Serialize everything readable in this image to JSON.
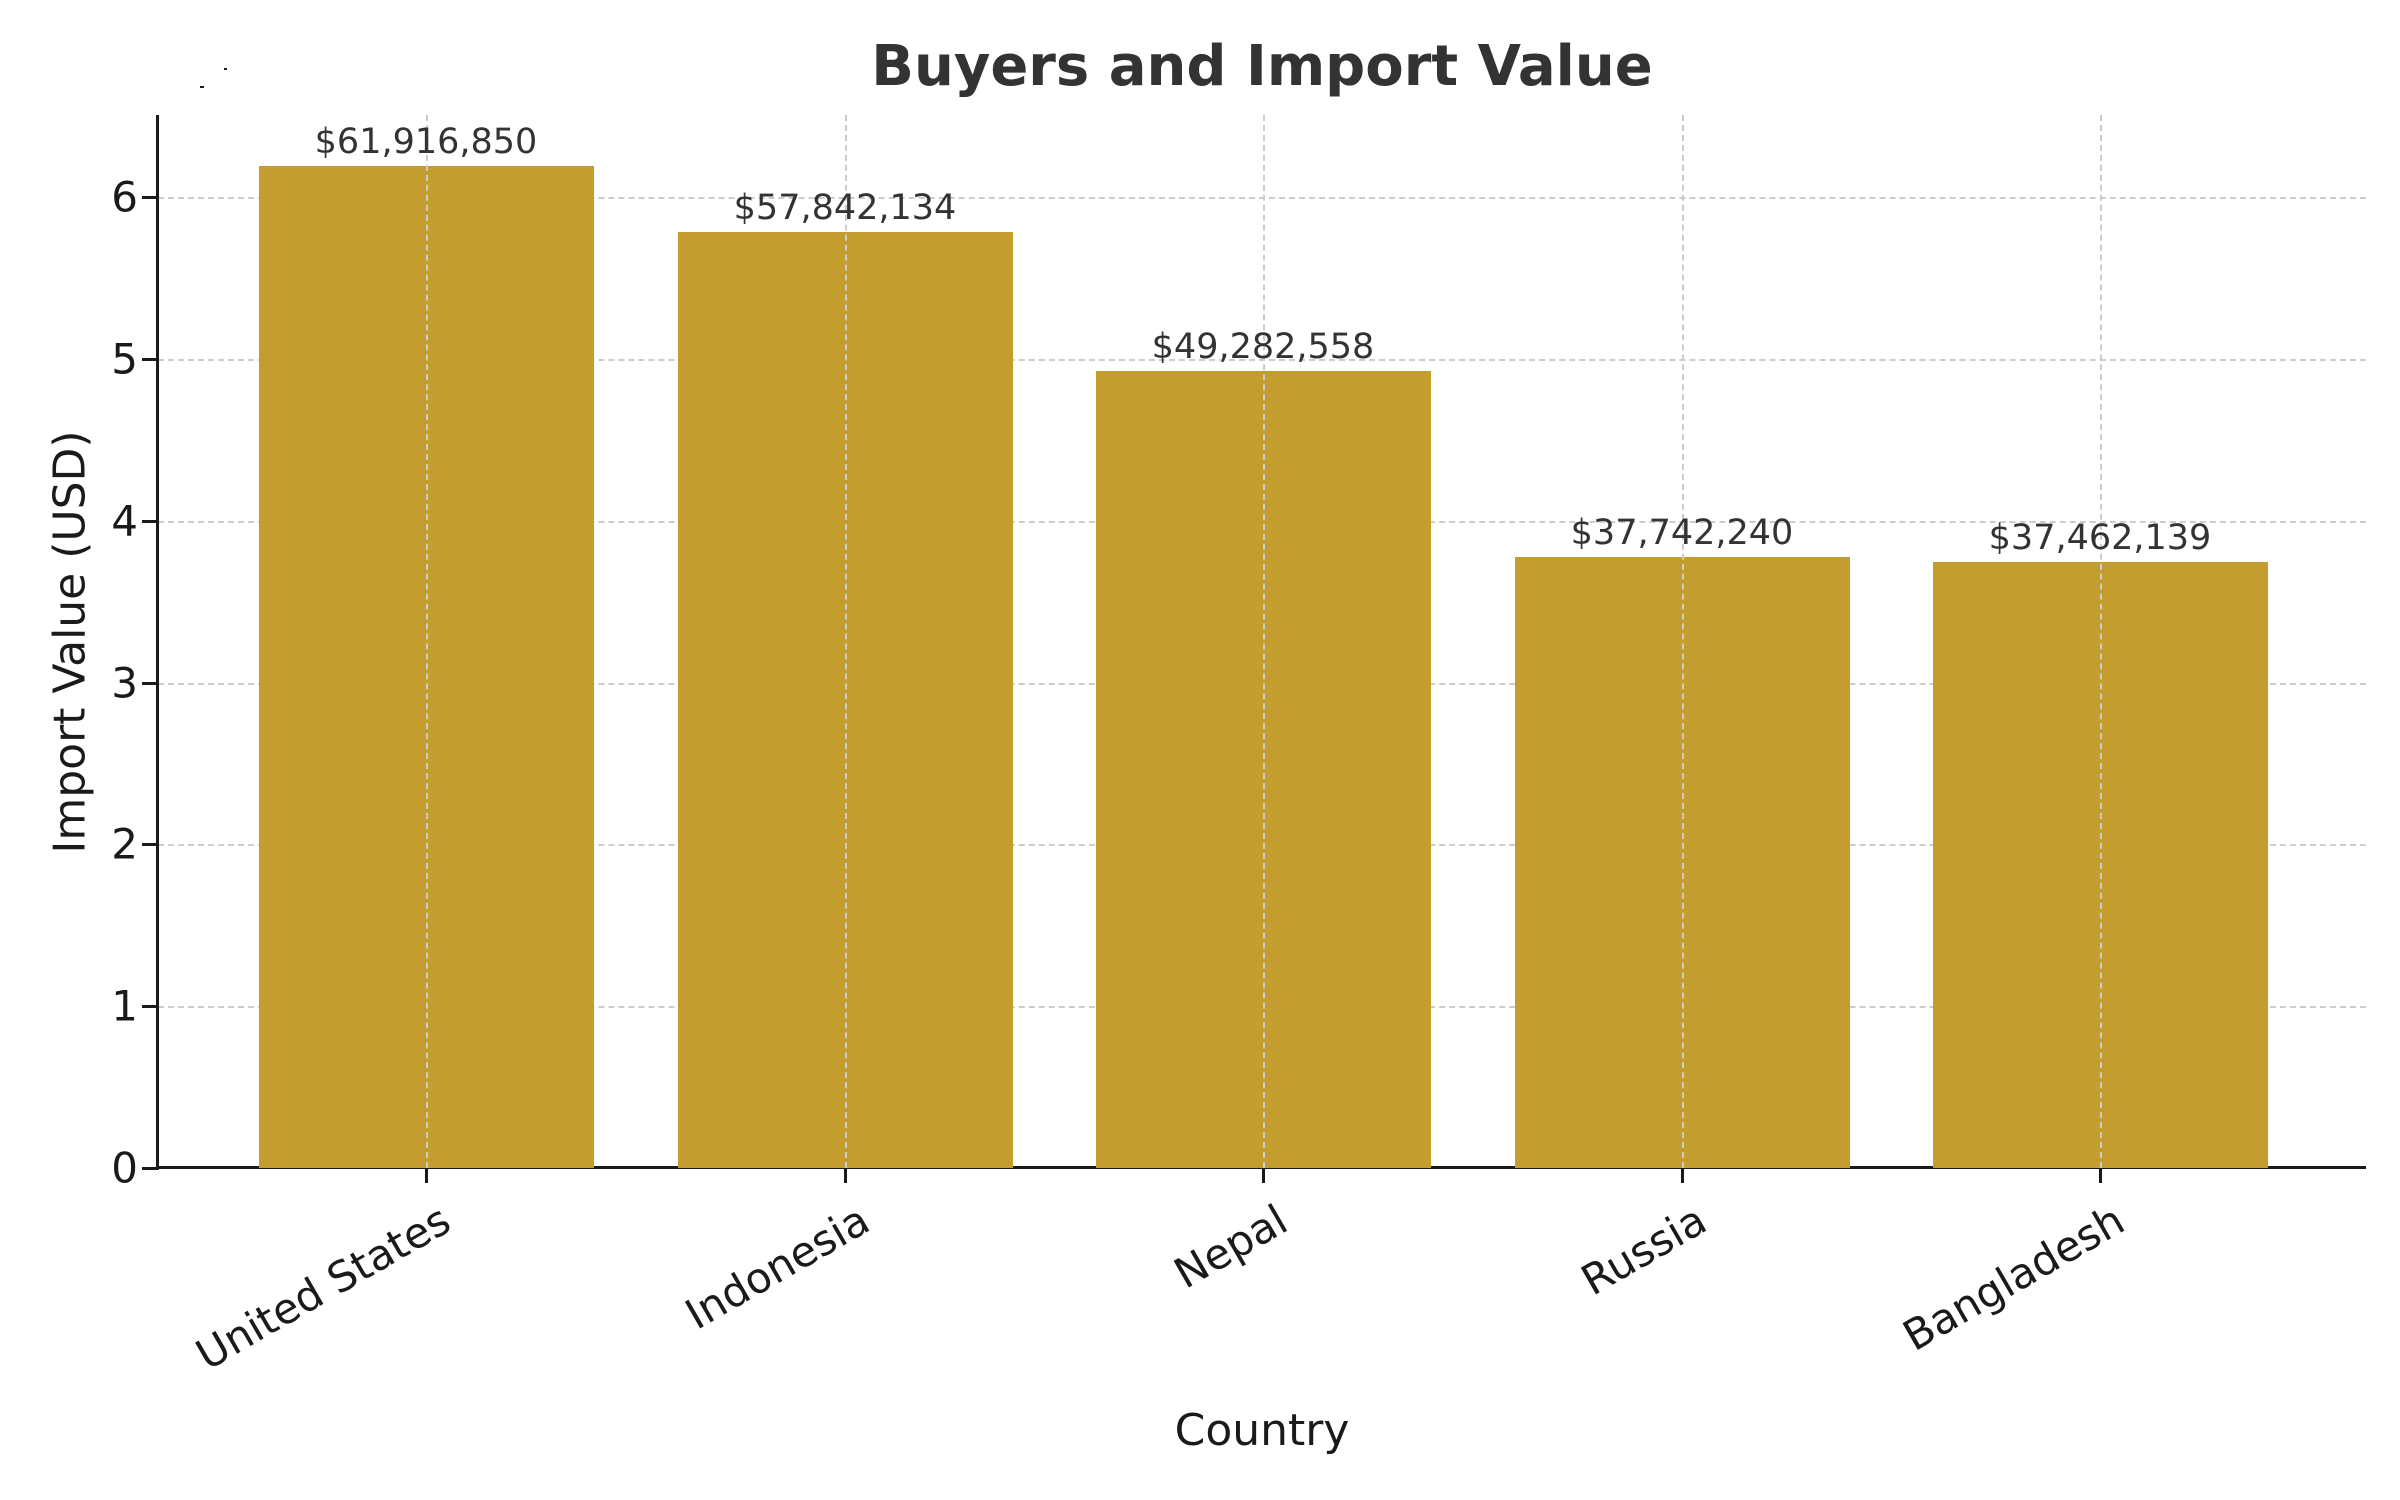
{
  "chart": {
    "title": "Buyers and Import Value",
    "xlabel": "Country",
    "ylabel": "Import Value (USD)",
    "bar_color": "#C39D2E",
    "y_ticks": [
      "0",
      "1",
      "2",
      "3",
      "4",
      "5",
      "6"
    ],
    "bars": [
      {
        "category": "United States",
        "value": 61916850,
        "label": "$61,916,850"
      },
      {
        "category": "Indonesia",
        "value": 57842134,
        "label": "$57,842,134"
      },
      {
        "category": "Nepal",
        "value": 49282558,
        "label": "$49,282,558"
      },
      {
        "category": "Russia",
        "value": 37742240,
        "label": "$37,742,240"
      },
      {
        "category": "Bangladesh",
        "value": 37462139,
        "label": "$37,462,139"
      }
    ]
  },
  "chart_data": {
    "type": "bar",
    "title": "Buyers and Import Value",
    "xlabel": "Country",
    "ylabel": "Import Value (USD)",
    "categories": [
      "United States",
      "Indonesia",
      "Nepal",
      "Russia",
      "Bangladesh"
    ],
    "values": [
      61916850,
      57842134,
      49282558,
      37742240,
      37462139
    ],
    "data_labels": [
      "$61,916,850",
      "$57,842,134",
      "$49,282,558",
      "$37,742,240",
      "$37,462,139"
    ],
    "y_tick_labels": [
      "0",
      "1",
      "2",
      "3",
      "4",
      "5",
      "6"
    ],
    "y_scale_note": "axis ticks in units of 1e7 USD",
    "ylim": [
      0,
      65000000
    ],
    "grid": true,
    "grid_style": "dashed",
    "legend": null,
    "bar_color": "#C39D2E",
    "x_tick_rotation": 30
  }
}
